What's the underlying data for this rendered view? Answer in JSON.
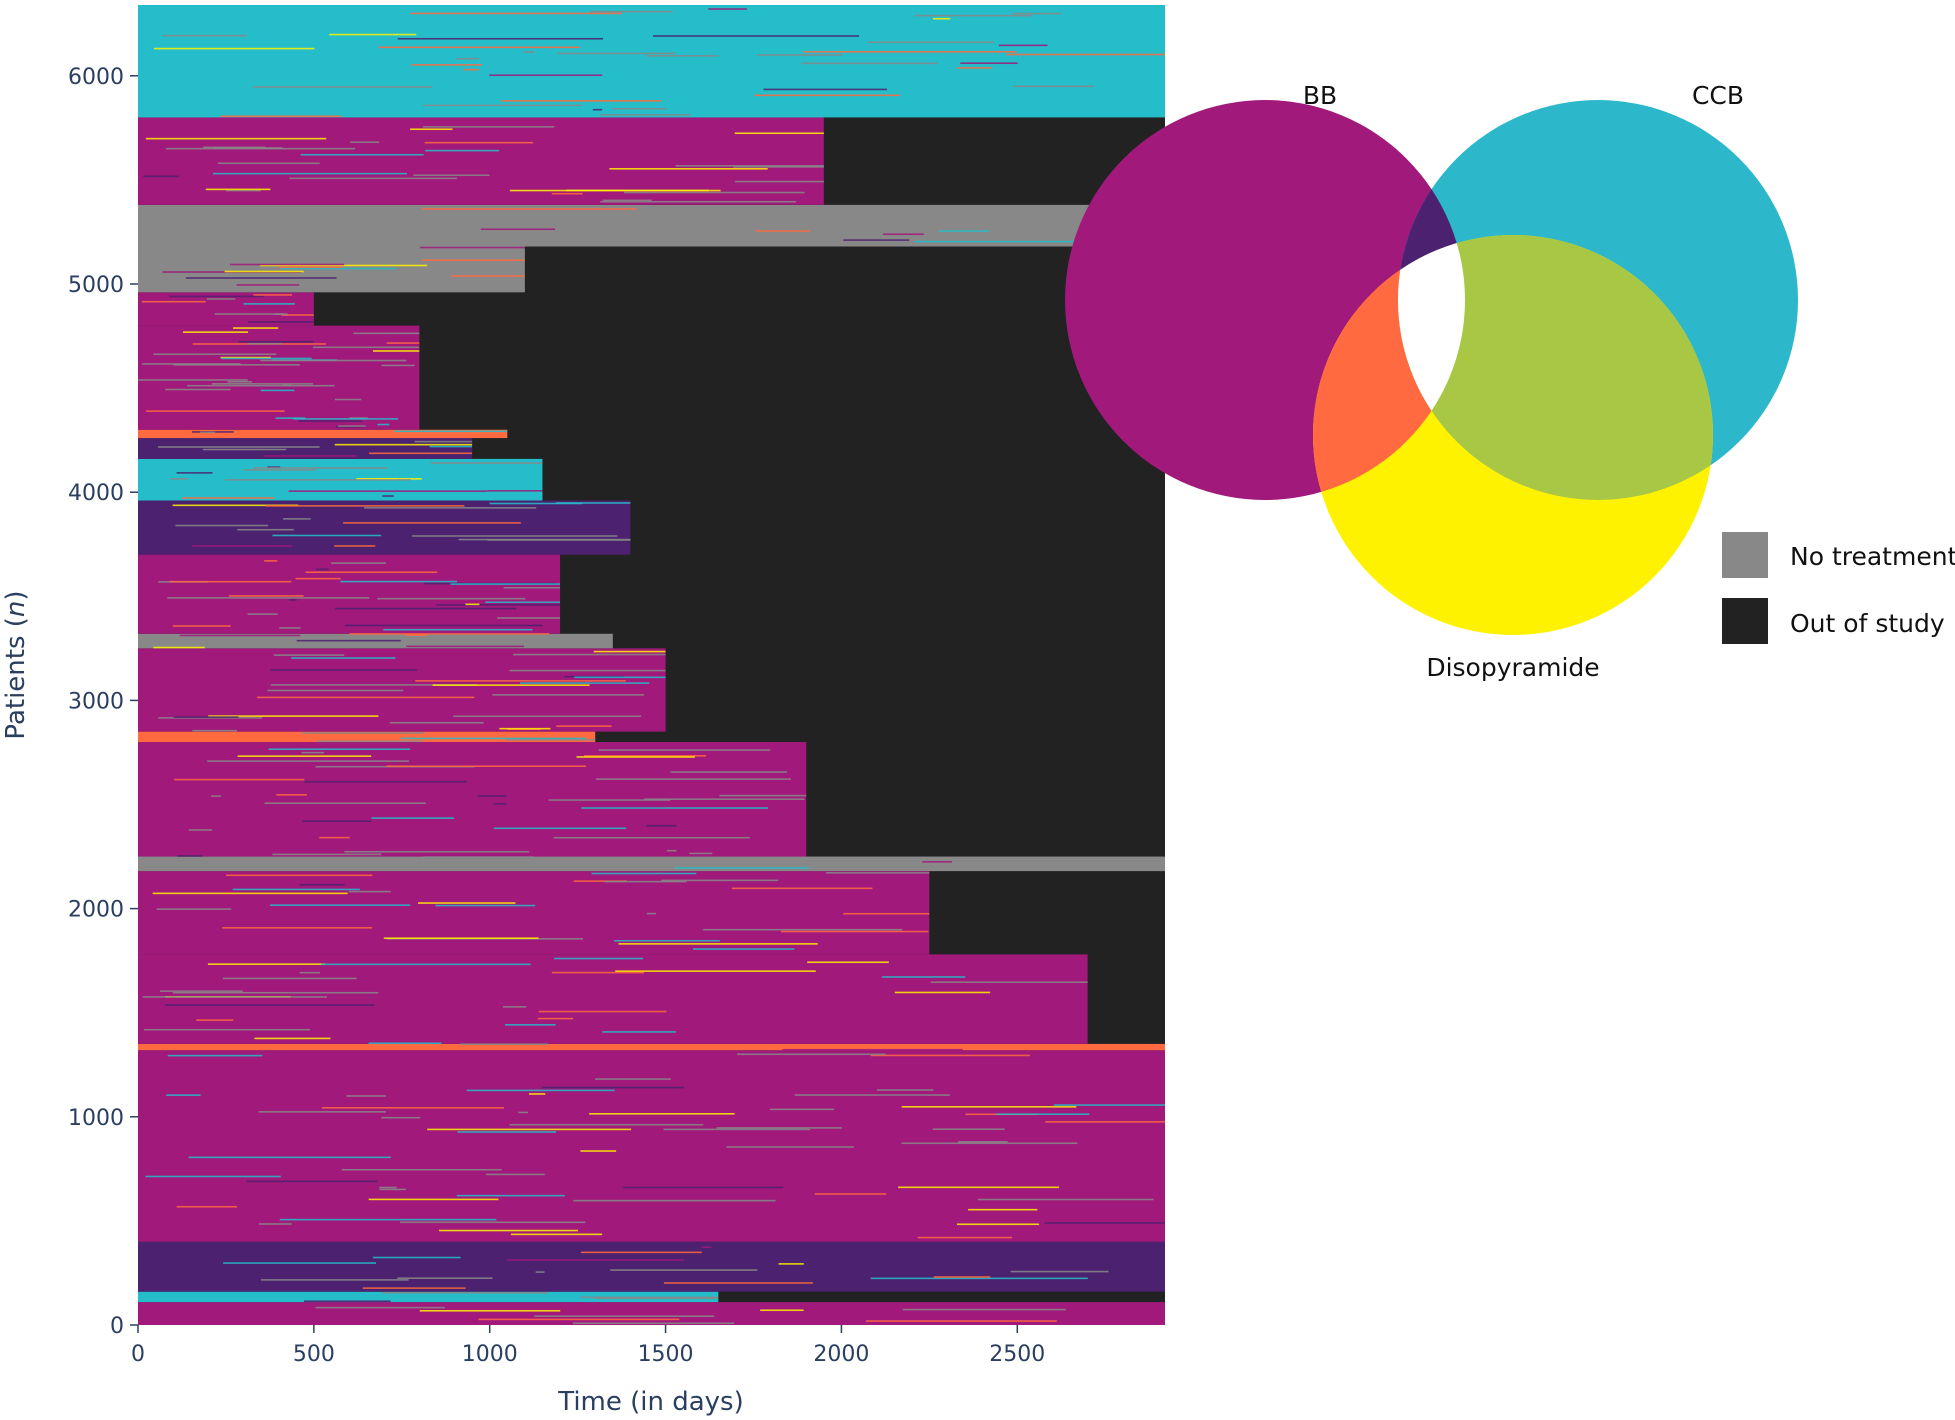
{
  "chart_data": [
    {
      "type": "heatmap",
      "description_note": "",
      "xlabel": "Time (in days)",
      "ylabel_prefix": "Patients (",
      "ylabel_var": "n",
      "ylabel_suffix": ")",
      "xlim": [
        0,
        2920
      ],
      "ylim": [
        0,
        6340
      ],
      "x_ticks": [
        0,
        500,
        1000,
        1500,
        2000,
        2500
      ],
      "y_ticks": [
        0,
        1000,
        2000,
        3000,
        4000,
        5000,
        6000
      ],
      "colors": {
        "BB": "#a0197b",
        "CCB": "#25bdca",
        "Disopyramide": "#fff200",
        "BB+CCB": "#4c2170",
        "BB+Disopyramide": "#ff6a40",
        "CCB+Disopyramide": "#a8c845",
        "All three": "#ffffff",
        "No treatment": "#888888",
        "Out of study": "#222222"
      },
      "bands": [
        {
          "y0": 0,
          "y1": 110,
          "state": "BB",
          "end": 2920
        },
        {
          "y0": 110,
          "y1": 160,
          "state": "CCB",
          "end": 1650
        },
        {
          "y0": 160,
          "y1": 400,
          "state": "BB+CCB",
          "end": 2920
        },
        {
          "y0": 400,
          "y1": 1320,
          "state": "BB",
          "end": 2920
        },
        {
          "y0": 1320,
          "y1": 1350,
          "state": "BB+Disopyramide",
          "end": 2920
        },
        {
          "y0": 1350,
          "y1": 1780,
          "state": "BB",
          "end": 2700
        },
        {
          "y0": 1780,
          "y1": 2180,
          "state": "BB",
          "end": 2250
        },
        {
          "y0": 2180,
          "y1": 2250,
          "state": "No treatment",
          "end": 2920
        },
        {
          "y0": 2250,
          "y1": 2800,
          "state": "BB",
          "end": 1900
        },
        {
          "y0": 2800,
          "y1": 2850,
          "state": "BB+Disopyramide",
          "end": 1300
        },
        {
          "y0": 2850,
          "y1": 3250,
          "state": "BB",
          "end": 1500
        },
        {
          "y0": 3250,
          "y1": 3320,
          "state": "No treatment",
          "end": 1350
        },
        {
          "y0": 3320,
          "y1": 3700,
          "state": "BB",
          "end": 1200
        },
        {
          "y0": 3700,
          "y1": 3960,
          "state": "BB+CCB",
          "end": 1400
        },
        {
          "y0": 3960,
          "y1": 4160,
          "state": "CCB",
          "end": 1150
        },
        {
          "y0": 4160,
          "y1": 4260,
          "state": "BB+CCB",
          "end": 950
        },
        {
          "y0": 4260,
          "y1": 4300,
          "state": "BB+Disopyramide",
          "end": 1050
        },
        {
          "y0": 4300,
          "y1": 4800,
          "state": "BB",
          "end": 800
        },
        {
          "y0": 4800,
          "y1": 4960,
          "state": "BB",
          "end": 500
        },
        {
          "y0": 4960,
          "y1": 5180,
          "state": "No treatment",
          "end": 1100
        },
        {
          "y0": 5180,
          "y1": 5380,
          "state": "No treatment",
          "end": 2920
        },
        {
          "y0": 5380,
          "y1": 5800,
          "state": "BB",
          "end": 1950
        },
        {
          "y0": 5800,
          "y1": 6340,
          "state": "CCB",
          "end": 2920
        }
      ]
    },
    {
      "type": "venn",
      "sets": [
        "BB",
        "CCB",
        "Disopyramide"
      ],
      "legend": [
        {
          "label": "No treatment",
          "color": "#888888"
        },
        {
          "label": "Out of study",
          "color": "#222222"
        }
      ]
    }
  ]
}
